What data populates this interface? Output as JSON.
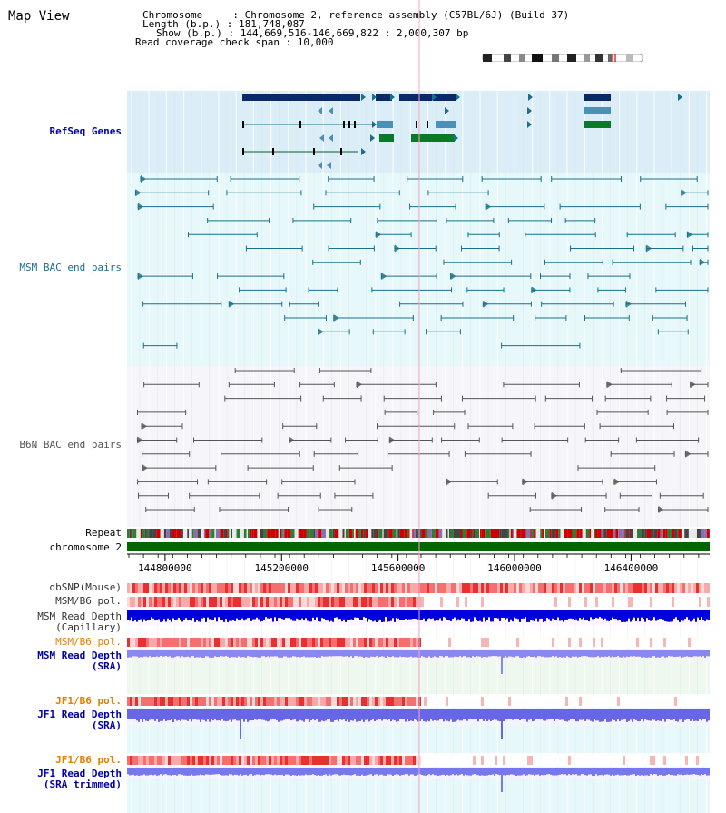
{
  "header": {
    "title": "Map View",
    "info_lines": [
      "Chromosome     : Chromosome 2, reference assembly (C57BL/6J) (Build 37)",
      "Length (b.p.) : 181,748,087",
      "Show (b.p.) : 144,669,516-146,669,822 : 2,000,307 bp",
      "Read coverage check span : 10,000"
    ]
  },
  "tracks": {
    "refseq": "RefSeq Genes",
    "msm_bac": "MSM BAC end pairs",
    "b6n_bac": "B6N BAC end pairs",
    "repeat": "Repeat",
    "chromosome": "chromosome 2",
    "dbsnp": "dbSNP(Mouse)",
    "msm_b6_pol": "MSM/B6 pol.",
    "msm_depth_cap": "MSM Read Depth\n(Capillary)",
    "msm_b6_pol2": "MSM/B6 pol.",
    "msm_depth_sra": "MSM Read Depth\n(SRA)",
    "jf1_b6_pol": "JF1/B6 pol.",
    "jf1_depth_sra": "JF1 Read Depth\n(SRA)",
    "jf1_b6_pol2": "JF1/B6 pol.",
    "jf1_depth_trim": "JF1 Read Depth\n(SRA trimmed)"
  },
  "axis": {
    "ticks": [
      "144800000",
      "145200000",
      "145600000",
      "146000000",
      "146400000"
    ],
    "range": [
      144669516,
      146669822
    ]
  },
  "colors": {
    "refseq_bg": "#dbeef8",
    "msm_bg": "#e6f8fa",
    "b6n_bg": "#f5f5fa",
    "msm_line": "#1a6f8a",
    "b6n_line": "#555555",
    "chrom": "#006600",
    "depth_blue": "#0000dd",
    "depth_light": "#7777ee"
  }
}
